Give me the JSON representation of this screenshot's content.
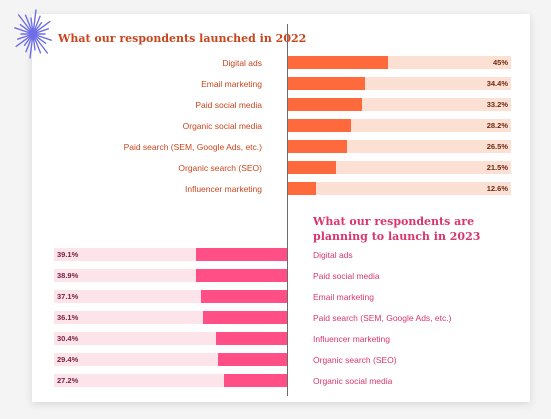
{
  "colors": {
    "orange": "#ff6a3d",
    "orange_track": "#fde0d4",
    "orange_text": "#c9451e",
    "pink": "#ff4f86",
    "pink_track": "#fde3ea",
    "pink_text": "#d9366b",
    "burst": "#6f6ee6"
  },
  "chart_data": [
    {
      "type": "bar",
      "orientation": "horizontal",
      "title": "What our respondents launched in 2022",
      "categories": [
        "Digital ads",
        "Email marketing",
        "Paid social media",
        "Organic social media",
        "Paid search (SEM, Google Ads, etc.)",
        "Organic search (SEO)",
        "Influencer marketing"
      ],
      "values": [
        45,
        34.4,
        33.2,
        28.2,
        26.5,
        21.5,
        12.6
      ],
      "value_labels": [
        "45%",
        "34.4%",
        "33.2%",
        "28.2%",
        "26.5%",
        "21.5%",
        "12.6%"
      ],
      "unit": "%",
      "xlim": [
        0,
        100
      ],
      "xlabel": "",
      "ylabel": ""
    },
    {
      "type": "bar",
      "orientation": "horizontal",
      "title": "What our respondents are planning to launch in 2023",
      "categories": [
        "Digital ads",
        "Paid social media",
        "Email marketing",
        "Paid search (SEM, Google Ads, etc.)",
        "Influencer marketing",
        "Organic search (SEO)",
        "Organic social media"
      ],
      "values": [
        39.1,
        38.9,
        37.1,
        36.1,
        30.4,
        29.4,
        27.2
      ],
      "value_labels": [
        "39.1%",
        "38.9%",
        "37.1%",
        "36.1%",
        "30.4%",
        "29.4%",
        "27.2%"
      ],
      "unit": "%",
      "xlim": [
        0,
        100
      ],
      "xlabel": "",
      "ylabel": ""
    }
  ]
}
